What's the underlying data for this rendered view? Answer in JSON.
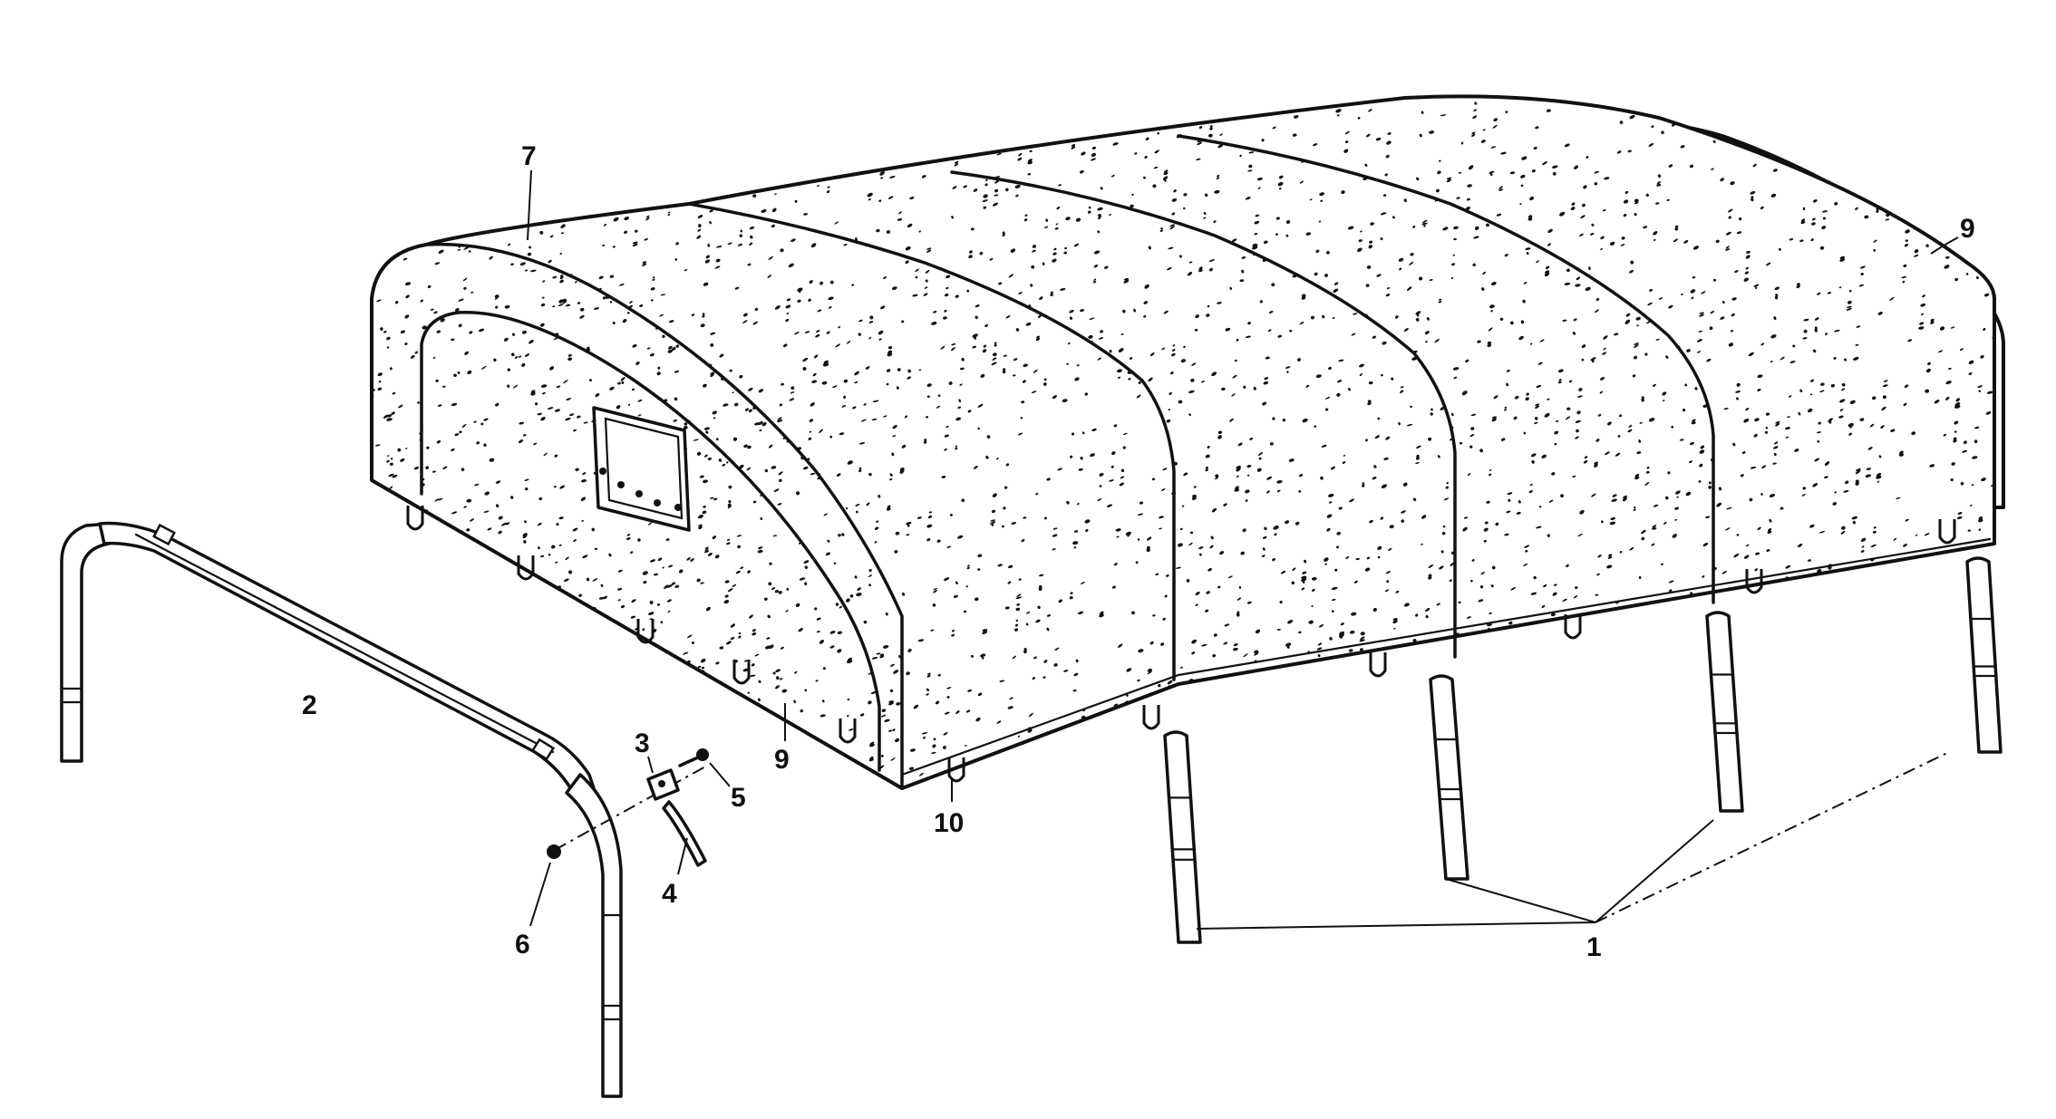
{
  "callouts": {
    "c1": "1",
    "c2": "2",
    "c3": "3",
    "c4": "4",
    "c5": "5",
    "c6": "6",
    "c7": "7",
    "c9a": "9",
    "c9b": "9",
    "c10": "10"
  },
  "colors": {
    "ink": "#111111",
    "paper": "#ffffff"
  }
}
